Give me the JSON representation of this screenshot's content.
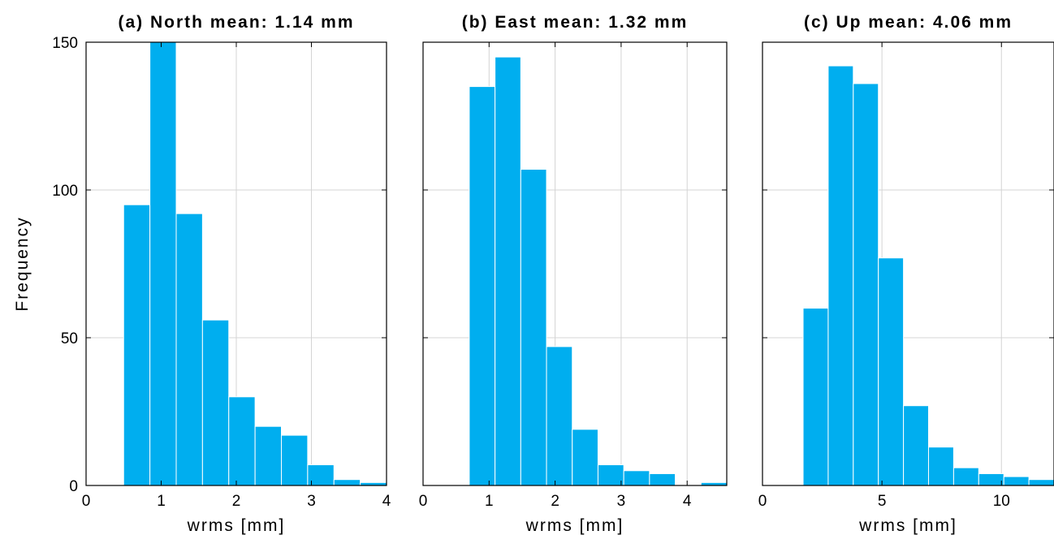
{
  "figure": {
    "ylabel": "Frequency"
  },
  "colors": {
    "bar": "#00AEEF",
    "grid": "#d4d4d4"
  },
  "chart_data": [
    {
      "type": "bar",
      "title": "(a) North mean: 1.14 mm",
      "xlabel": "wrms [mm]",
      "ylabel": "Frequency",
      "xlim": [
        0,
        4
      ],
      "ylim": [
        0,
        150
      ],
      "xticks": [
        0,
        1,
        2,
        3,
        4
      ],
      "yticks": [
        0,
        50,
        100,
        150
      ],
      "grid": true,
      "bins": [
        {
          "x0": 0.5,
          "x1": 0.85,
          "count": 95
        },
        {
          "x0": 0.85,
          "x1": 1.2,
          "count": 150
        },
        {
          "x0": 1.2,
          "x1": 1.55,
          "count": 92
        },
        {
          "x0": 1.55,
          "x1": 1.9,
          "count": 56
        },
        {
          "x0": 1.9,
          "x1": 2.25,
          "count": 30
        },
        {
          "x0": 2.25,
          "x1": 2.6,
          "count": 20
        },
        {
          "x0": 2.6,
          "x1": 2.95,
          "count": 17
        },
        {
          "x0": 2.95,
          "x1": 3.3,
          "count": 7
        },
        {
          "x0": 3.3,
          "x1": 3.65,
          "count": 2
        },
        {
          "x0": 3.65,
          "x1": 4.0,
          "count": 1
        }
      ]
    },
    {
      "type": "bar",
      "title": "(b) East mean: 1.32 mm",
      "xlabel": "wrms [mm]",
      "ylabel": "Frequency",
      "xlim": [
        0,
        4.6
      ],
      "ylim": [
        0,
        150
      ],
      "xticks": [
        0,
        1,
        2,
        3,
        4
      ],
      "yticks": [
        0,
        50,
        100,
        150
      ],
      "grid": true,
      "bins": [
        {
          "x0": 0.7,
          "x1": 1.09,
          "count": 135
        },
        {
          "x0": 1.09,
          "x1": 1.48,
          "count": 145
        },
        {
          "x0": 1.48,
          "x1": 1.87,
          "count": 107
        },
        {
          "x0": 1.87,
          "x1": 2.26,
          "count": 47
        },
        {
          "x0": 2.26,
          "x1": 2.65,
          "count": 19
        },
        {
          "x0": 2.65,
          "x1": 3.04,
          "count": 7
        },
        {
          "x0": 3.04,
          "x1": 3.43,
          "count": 5
        },
        {
          "x0": 3.43,
          "x1": 3.82,
          "count": 4
        },
        {
          "x0": 3.82,
          "x1": 4.21,
          "count": 0
        },
        {
          "x0": 4.21,
          "x1": 4.6,
          "count": 1
        }
      ]
    },
    {
      "type": "bar",
      "title": "(c) Up mean: 4.06 mm",
      "xlabel": "wrms [mm]",
      "ylabel": "Frequency",
      "xlim": [
        0,
        12.2
      ],
      "ylim": [
        0,
        150
      ],
      "xticks": [
        0,
        5,
        10
      ],
      "yticks": [
        0,
        50,
        100,
        150
      ],
      "grid": true,
      "bins": [
        {
          "x0": 1.7,
          "x1": 2.75,
          "count": 60
        },
        {
          "x0": 2.75,
          "x1": 3.8,
          "count": 142
        },
        {
          "x0": 3.8,
          "x1": 4.85,
          "count": 136
        },
        {
          "x0": 4.85,
          "x1": 5.9,
          "count": 77
        },
        {
          "x0": 5.9,
          "x1": 6.95,
          "count": 27
        },
        {
          "x0": 6.95,
          "x1": 8.0,
          "count": 13
        },
        {
          "x0": 8.0,
          "x1": 9.05,
          "count": 6
        },
        {
          "x0": 9.05,
          "x1": 10.1,
          "count": 4
        },
        {
          "x0": 10.1,
          "x1": 11.15,
          "count": 3
        },
        {
          "x0": 11.15,
          "x1": 12.2,
          "count": 2
        }
      ]
    }
  ]
}
